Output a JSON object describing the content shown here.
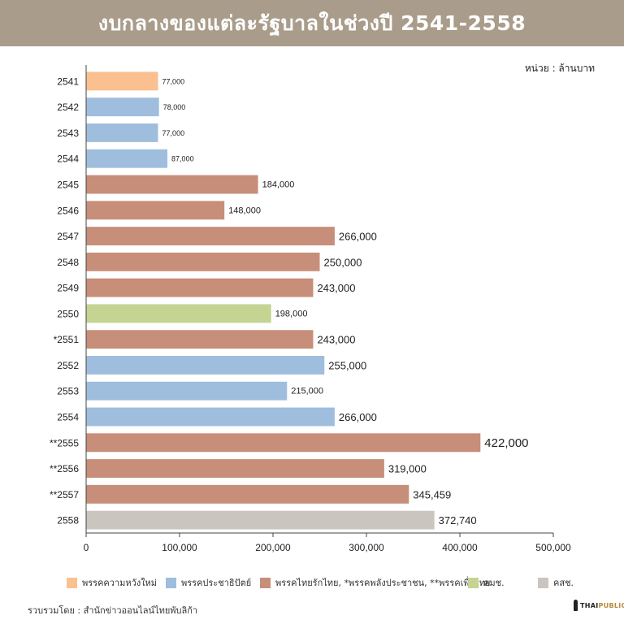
{
  "header": {
    "title": "งบกลางของแต่ละรัฐบาลในช่วงปี 2541-2558"
  },
  "unit_label": "หน่วย : ล้านบาท",
  "source": "รวบรวมโดย : สำนักข่าวออนไลน์ไทยพับลิก้า",
  "logo": {
    "part1": "THAI",
    "part2": "PUBLICA"
  },
  "legend": [
    {
      "label": "พรรคความหวังใหม่",
      "color": "#fbc08f"
    },
    {
      "label": "พรรคประชาธิปัตย์",
      "color": "#9fbedd"
    },
    {
      "label": "พรรคไทยรักไทย, *พรรคพลังประชาชน, **พรรคเพื่อไทย",
      "color": "#c78e79"
    },
    {
      "label": "คมช.",
      "color": "#c5d393"
    },
    {
      "label": "คสช.",
      "color": "#cbc5c0"
    }
  ],
  "chart_data": {
    "type": "bar",
    "orientation": "horizontal",
    "title": "งบกลางของแต่ละรัฐบาลในช่วงปี 2541-2558",
    "unit": "หน่วย : ล้านบาท",
    "categories": [
      "2541",
      "2542",
      "2543",
      "2544",
      "2545",
      "2546",
      "2547",
      "2548",
      "2549",
      "2550",
      "*2551",
      "2552",
      "2553",
      "2554",
      "**2555",
      "**2556",
      "**2557",
      "2558"
    ],
    "values": [
      77000,
      78000,
      77000,
      87000,
      184000,
      148000,
      266000,
      250000,
      243000,
      198000,
      243000,
      255000,
      215000,
      266000,
      422000,
      319000,
      345459,
      372740
    ],
    "value_labels": [
      "77,000",
      "78,000",
      "77,000",
      "87,000",
      "184,000",
      "148,000",
      "266,000",
      "250,000",
      "243,000",
      "198,000",
      "243,000",
      "255,000",
      "215,000",
      "266,000",
      "422,000",
      "319,000",
      "345,459",
      "372,740"
    ],
    "bar_colors": [
      "#fbc08f",
      "#9fbedd",
      "#9fbedd",
      "#9fbedd",
      "#c78e79",
      "#c78e79",
      "#c78e79",
      "#c78e79",
      "#c78e79",
      "#c5d393",
      "#c78e79",
      "#9fbedd",
      "#9fbedd",
      "#9fbedd",
      "#c78e79",
      "#c78e79",
      "#c78e79",
      "#cbc5c0"
    ],
    "xlim": [
      0,
      500000
    ],
    "xticks": [
      0,
      100000,
      200000,
      300000,
      400000,
      500000
    ],
    "xtick_labels": [
      "0",
      "100,000",
      "200,000",
      "300,000",
      "400,000",
      "500,000"
    ],
    "grid": false,
    "legend_position": "bottom"
  }
}
